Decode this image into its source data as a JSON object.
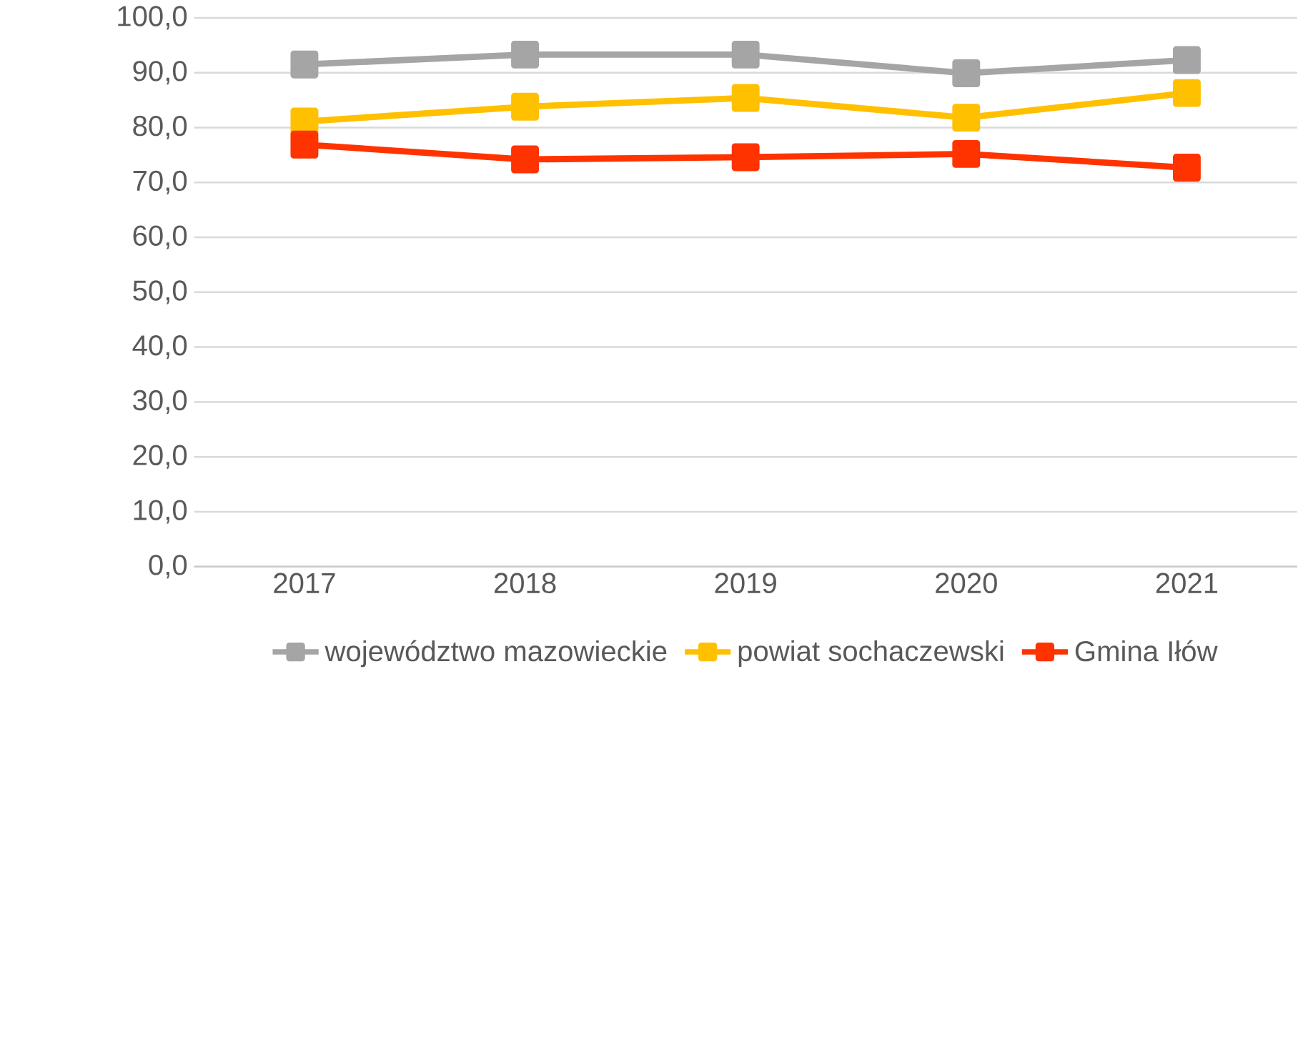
{
  "chart_data": {
    "type": "line",
    "categories": [
      "2017",
      "2018",
      "2019",
      "2020",
      "2021"
    ],
    "series": [
      {
        "name": "województwo mazowieckie",
        "color": "#a5a5a5",
        "values": [
          91.5,
          93.3,
          93.3,
          89.9,
          92.3
        ]
      },
      {
        "name": "powiat sochaczewski",
        "color": "#ffc000",
        "values": [
          81.1,
          83.8,
          85.4,
          81.8,
          86.3
        ]
      },
      {
        "name": "Gmina Iłów",
        "color": "#ff3300",
        "values": [
          76.9,
          74.2,
          74.6,
          75.2,
          72.7
        ]
      }
    ],
    "ylim": [
      0,
      100
    ],
    "yticks": [
      {
        "value": 0,
        "label": "0,0"
      },
      {
        "value": 10,
        "label": "10,0"
      },
      {
        "value": 20,
        "label": "20,0"
      },
      {
        "value": 30,
        "label": "30,0"
      },
      {
        "value": 40,
        "label": "40,0"
      },
      {
        "value": 50,
        "label": "50,0"
      },
      {
        "value": 60,
        "label": "60,0"
      },
      {
        "value": 70,
        "label": "70,0"
      },
      {
        "value": 80,
        "label": "80,0"
      },
      {
        "value": 90,
        "label": "90,0"
      },
      {
        "value": 100,
        "label": "100,0"
      }
    ],
    "grid": "y",
    "legend": "bottom",
    "marker": "square",
    "line_style": "solid"
  }
}
